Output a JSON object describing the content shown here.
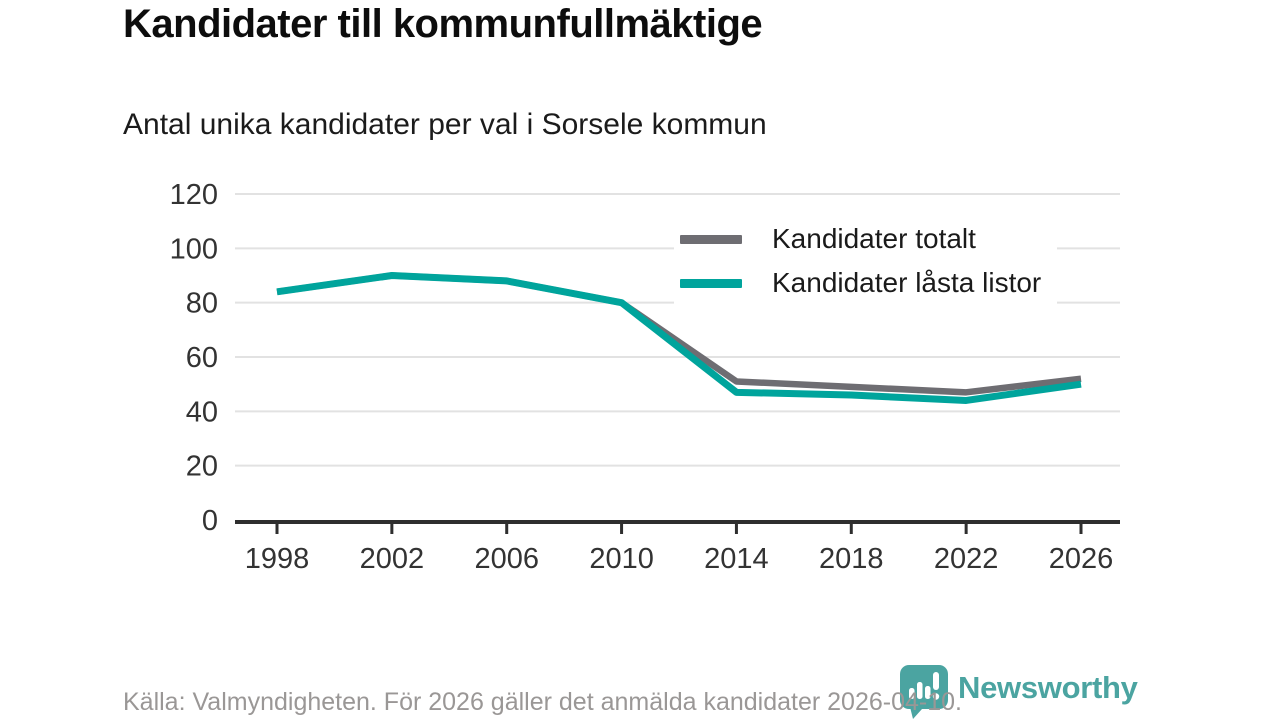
{
  "title": "Kandidater till kommunfullmäktige",
  "subtitle": "Antal unika kandidater per val i Sorsele kommun",
  "footer": {
    "source_text": "Källa: Valmyndigheten. För 2026 gäller det anmälda kandidater 2026-04-10."
  },
  "branding": {
    "logo_text": "Newsworthy",
    "logo_icon": "speech-bubble-bar-chart-icon",
    "logo_color": "#4ba4a1"
  },
  "colors": {
    "total_line": "#6e6d72",
    "locked_line": "#00a49c",
    "grid": "#e2e2e2",
    "axis": "#2e2e2e",
    "tick_label": "#333333",
    "footer_text": "#9a9796"
  },
  "chart_data": {
    "type": "line",
    "title": "Kandidater till kommunfullmäktige",
    "subtitle": "Antal unika kandidater per val i Sorsele kommun",
    "categories": [
      "1998",
      "2002",
      "2006",
      "2010",
      "2014",
      "2018",
      "2022",
      "2026"
    ],
    "series": [
      {
        "name": "Kandidater totalt",
        "color": "#6e6d72",
        "values": [
          84,
          90,
          88,
          80,
          51,
          49,
          47,
          52
        ]
      },
      {
        "name": "Kandidater låsta listor",
        "color": "#00a49c",
        "values": [
          84,
          90,
          88,
          80,
          47,
          46,
          44,
          50
        ]
      }
    ],
    "ylim": [
      0,
      120
    ],
    "yticks": [
      0,
      20,
      40,
      60,
      80,
      100,
      120
    ],
    "xlabel": "",
    "ylabel": "",
    "grid": "horizontal",
    "legend_position": "top-right-inside"
  }
}
